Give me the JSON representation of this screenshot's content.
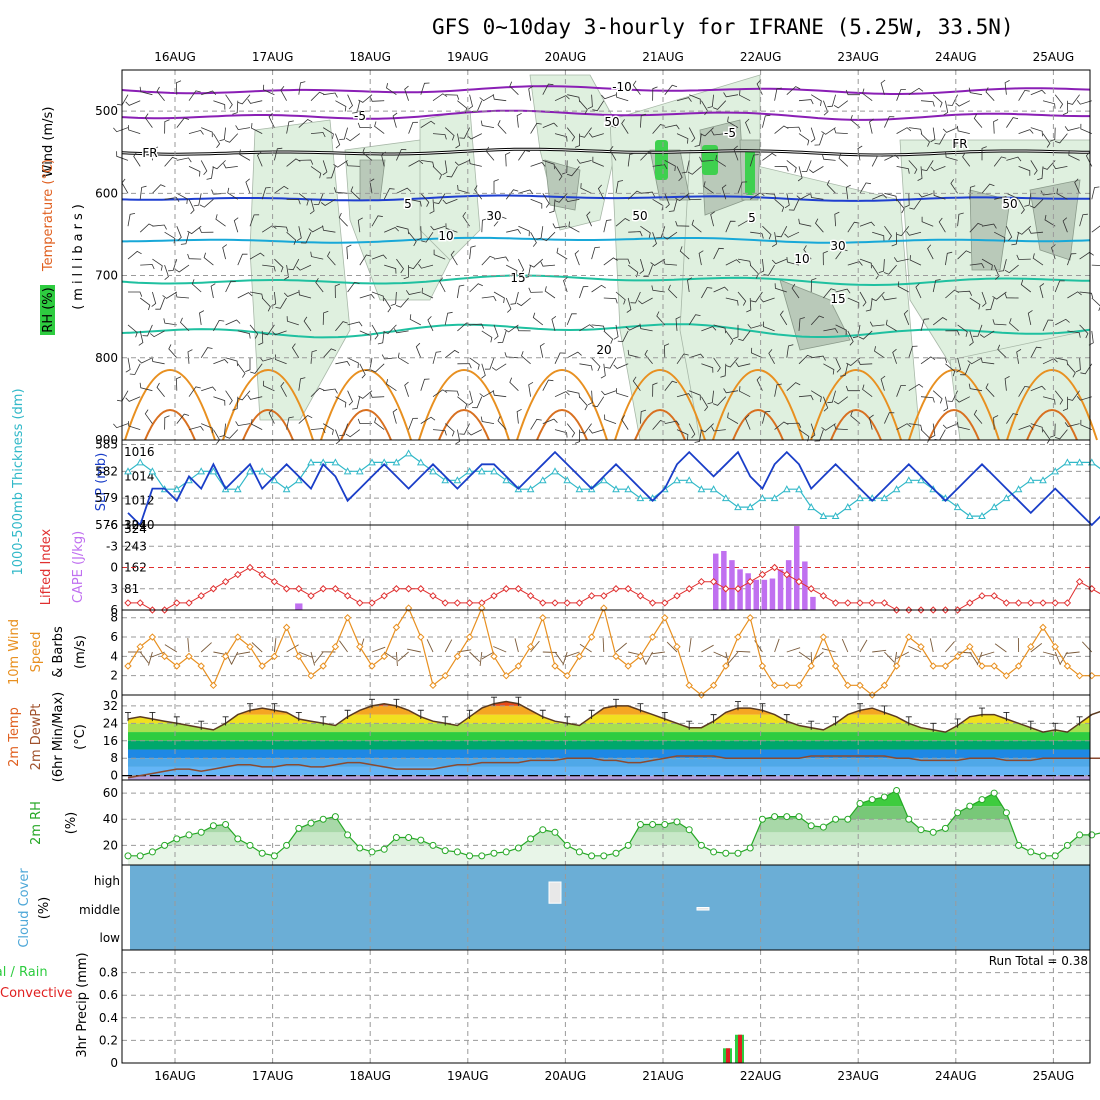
{
  "title": "GFS 0~10day 3-hourly for IFRANE (5.25W, 33.5N)",
  "dates": [
    "16AUG",
    "17AUG",
    "18AUG",
    "19AUG",
    "20AUG",
    "21AUG",
    "22AUG",
    "23AUG",
    "24AUG",
    "25AUG"
  ],
  "run_total": "Run Total = 0.38",
  "colors": {
    "rh_green": "#2ecc40",
    "temp_purple": "#8a1fb5",
    "temp_blue": "#1f3fd0",
    "temp_cyan": "#18a8d8",
    "temp_teal": "#1fc0a0",
    "temp_orange": "#e89020",
    "slp_blue": "#1a3ec8",
    "thickness_cyan": "#30b8c8",
    "lifted_red": "#e03030",
    "cape_purple": "#c070f0",
    "wind_orange": "#e89020",
    "rh2m_green": "#27a827",
    "cloud_blue": "#6baed6",
    "precip_green": "#2ecc40",
    "precip_red": "#e02020"
  },
  "panels": {
    "upper": {
      "label_wind": "Wind (m/s)",
      "label_temp": "Temperature (°C)",
      "label_rh": "RH (%)",
      "label_mb": "(millibars)",
      "yticks": [
        "500",
        "600",
        "700",
        "800",
        "900"
      ],
      "contour_labels": [
        "-10",
        "-5",
        "-5",
        "FR",
        "FR",
        "5",
        "5",
        "10",
        "10",
        "15",
        "15",
        "20",
        "30",
        "30",
        "50",
        "50",
        "50"
      ]
    },
    "slp": {
      "label_thick": "1000-500mb Thickness (dm)",
      "label_slp": "SLP (mb)",
      "left_ticks": [
        "585",
        "582",
        "579",
        "576"
      ],
      "right_ticks": [
        "1016",
        "1014",
        "1012",
        "1010"
      ]
    },
    "cape": {
      "label_li": "Lifted Index",
      "label_cape": "CAPE (J/kg)",
      "left_ticks": [
        "-6",
        "-3",
        "0",
        "3",
        "6"
      ],
      "right_ticks": [
        "324",
        "243",
        "162",
        "81"
      ]
    },
    "wind10": {
      "label": "10m Wind",
      "label2": "Speed",
      "label3": "(m/s)",
      "label4": "& Barbs",
      "ticks": [
        "8",
        "6",
        "4",
        "2",
        "0"
      ]
    },
    "temp2m": {
      "label": "2m Temp",
      "label2": "2m DewPt",
      "label3": "(6hr Min/Max)",
      "label4": "(°C)",
      "ticks": [
        "32",
        "24",
        "16",
        "8",
        "0"
      ]
    },
    "rh2m": {
      "label": "2m RH",
      "label2": "(%)",
      "ticks": [
        "60",
        "40",
        "20"
      ]
    },
    "cloud": {
      "label": "Cloud Cover",
      "label2": "(%)",
      "ticks": [
        "high",
        "middle",
        "low"
      ]
    },
    "precip": {
      "label": "Total / Rain",
      "label2": "Convective",
      "label3": "3hr Precip (mm)",
      "ticks": [
        "0.8",
        "0.6",
        "0.4",
        "0.2",
        "0"
      ]
    }
  },
  "chart_data": {
    "type": "line",
    "x_labels": [
      "16AUG",
      "17AUG",
      "18AUG",
      "19AUG",
      "20AUG",
      "21AUG",
      "22AUG",
      "23AUG",
      "24AUG",
      "25AUG"
    ],
    "series": [
      {
        "name": "SLP (mb)",
        "values": [
          1011,
          1010,
          1013,
          1013,
          1012,
          1014,
          1013,
          1015,
          1013,
          1014,
          1015,
          1013,
          1014,
          1015,
          1014,
          1013,
          1015,
          1014,
          1012,
          1013,
          1014,
          1015,
          1014,
          1013,
          1014,
          1015,
          1014,
          1013,
          1014,
          1015,
          1015,
          1014,
          1013,
          1014,
          1015,
          1016,
          1015,
          1014,
          1013,
          1014,
          1015,
          1014,
          1013,
          1012,
          1013,
          1015,
          1016,
          1015,
          1014,
          1015,
          1016,
          1014,
          1013,
          1015,
          1016,
          1015,
          1013,
          1014,
          1015,
          1014,
          1013,
          1012,
          1013,
          1014,
          1015,
          1014,
          1013,
          1012,
          1013,
          1014,
          1015,
          1014,
          1013,
          1012,
          1011,
          1012,
          1013,
          1012,
          1011,
          1010,
          1011,
          1012,
          1013
        ]
      },
      {
        "name": "1000-500mb Thickness (dm)",
        "values": [
          582,
          583,
          582,
          580,
          580,
          581,
          582,
          582,
          580,
          580,
          582,
          582,
          581,
          580,
          581,
          583,
          583,
          583,
          582,
          582,
          583,
          583,
          583,
          584,
          583,
          582,
          581,
          581,
          582,
          582,
          582,
          581,
          580,
          580,
          581,
          582,
          581,
          580,
          580,
          581,
          580,
          580,
          579,
          579,
          580,
          581,
          581,
          580,
          580,
          579,
          578,
          578,
          579,
          579,
          580,
          580,
          578,
          577,
          577,
          578,
          579,
          579,
          579,
          580,
          581,
          581,
          580,
          579,
          578,
          577,
          577,
          578,
          579,
          580,
          581,
          581,
          582,
          583,
          583,
          583,
          582,
          582,
          582
        ]
      },
      {
        "name": "Lifted Index",
        "values": [
          5,
          5,
          6,
          6,
          5,
          5,
          4,
          3,
          2,
          1,
          0,
          1,
          2,
          3,
          3,
          4,
          3,
          3,
          4,
          5,
          5,
          4,
          3,
          3,
          3,
          4,
          5,
          5,
          5,
          5,
          4,
          3,
          3,
          4,
          5,
          5,
          5,
          5,
          4,
          4,
          3,
          3,
          4,
          5,
          5,
          4,
          3,
          2,
          2,
          3,
          3,
          2,
          1,
          0,
          1,
          2,
          3,
          4,
          5,
          5,
          5,
          5,
          5,
          6,
          6,
          6,
          6,
          6,
          6,
          5,
          4,
          4,
          5,
          5,
          5,
          5,
          5,
          5,
          2,
          3,
          4,
          5,
          5
        ]
      },
      {
        "name": "CAPE (J/kg)",
        "values": [
          0,
          0,
          0,
          0,
          0,
          0,
          0,
          0,
          0,
          0,
          0,
          0,
          0,
          0,
          25,
          0,
          0,
          0,
          0,
          0,
          0,
          0,
          0,
          0,
          0,
          0,
          0,
          0,
          0,
          0,
          0,
          0,
          0,
          0,
          0,
          0,
          0,
          0,
          0,
          0,
          0,
          0,
          0,
          0,
          0,
          0,
          0,
          0,
          0,
          0,
          0,
          0,
          0,
          0,
          0,
          0,
          0,
          0,
          0,
          0,
          0,
          0,
          0,
          0,
          0,
          0,
          0,
          0,
          0,
          0,
          0,
          0,
          0,
          0,
          0,
          0,
          0,
          0,
          0,
          0,
          0,
          0,
          0
        ]
      },
      {
        "name": "10m Wind Speed (m/s)",
        "values": [
          3,
          5,
          6,
          4,
          3,
          4,
          3,
          1,
          4,
          6,
          5,
          3,
          4,
          7,
          4,
          2,
          3,
          5,
          8,
          5,
          3,
          4,
          7,
          9,
          6,
          1,
          2,
          4,
          6,
          9,
          4,
          2,
          3,
          5,
          8,
          3,
          2,
          4,
          6,
          9,
          4,
          3,
          4,
          6,
          8,
          5,
          1,
          0,
          1,
          3,
          6,
          8,
          3,
          1,
          1,
          1,
          3,
          6,
          3,
          1,
          1,
          0,
          1,
          3,
          6,
          5,
          3,
          3,
          4,
          5,
          3,
          3,
          2,
          3,
          5,
          7,
          5,
          3,
          2,
          2,
          2,
          3,
          2
        ]
      },
      {
        "name": "2m Temp (°C)",
        "values": [
          26,
          27,
          26,
          25,
          24,
          23,
          22,
          21,
          24,
          28,
          30,
          31,
          30,
          29,
          26,
          25,
          24,
          23,
          27,
          30,
          32,
          33,
          32,
          30,
          27,
          25,
          24,
          23,
          27,
          31,
          33,
          34,
          33,
          30,
          27,
          25,
          24,
          23,
          27,
          31,
          32,
          32,
          30,
          28,
          26,
          24,
          22,
          22,
          25,
          29,
          31,
          31,
          30,
          28,
          25,
          23,
          22,
          21,
          24,
          28,
          30,
          31,
          29,
          27,
          24,
          22,
          21,
          20,
          23,
          27,
          28,
          28,
          26,
          24,
          22,
          20,
          21,
          20,
          24,
          28,
          30,
          30,
          29,
          27,
          24,
          23,
          22
        ]
      },
      {
        "name": "2m DewPt (°C)",
        "values": [
          -1,
          0,
          1,
          2,
          3,
          3,
          2,
          3,
          4,
          5,
          5,
          4,
          4,
          5,
          5,
          4,
          4,
          5,
          6,
          6,
          5,
          4,
          3,
          3,
          3,
          3,
          4,
          5,
          5,
          6,
          6,
          6,
          6,
          7,
          7,
          7,
          8,
          8,
          8,
          7,
          7,
          6,
          6,
          7,
          8,
          9,
          9,
          9,
          9,
          8,
          8,
          8,
          8,
          8,
          8,
          8,
          9,
          9,
          9,
          9,
          9,
          9,
          9,
          8,
          8,
          7,
          7,
          7,
          7,
          8,
          8,
          8,
          7,
          7,
          7,
          8,
          8,
          8,
          8,
          8,
          8,
          8,
          8
        ]
      },
      {
        "name": "2m RH (%)",
        "values": [
          12,
          12,
          15,
          20,
          25,
          28,
          30,
          35,
          36,
          25,
          20,
          14,
          12,
          20,
          33,
          37,
          40,
          42,
          28,
          18,
          15,
          17,
          26,
          26,
          24,
          20,
          16,
          15,
          12,
          12,
          14,
          15,
          18,
          25,
          32,
          30,
          20,
          15,
          12,
          12,
          14,
          20,
          36,
          36,
          36,
          38,
          32,
          20,
          15,
          14,
          14,
          18,
          40,
          42,
          42,
          42,
          35,
          34,
          40,
          40,
          52,
          55,
          57,
          62,
          40,
          32,
          30,
          33,
          45,
          50,
          55,
          60,
          45,
          20,
          15,
          12,
          12,
          20,
          28,
          28,
          30,
          28,
          22,
          15,
          30,
          40,
          42,
          42
        ]
      },
      {
        "name": "3hr Precip Total (mm)",
        "values": [
          0,
          0,
          0,
          0,
          0,
          0,
          0,
          0,
          0,
          0,
          0,
          0,
          0,
          0,
          0,
          0,
          0,
          0,
          0,
          0,
          0,
          0,
          0,
          0,
          0,
          0,
          0,
          0,
          0,
          0,
          0,
          0,
          0,
          0,
          0,
          0,
          0,
          0,
          0,
          0,
          0,
          0,
          0,
          0,
          0,
          0,
          0,
          0,
          0,
          0,
          0,
          0,
          0,
          0,
          0,
          0,
          0,
          0,
          0,
          0,
          0,
          0,
          0,
          0,
          0.13,
          0.25,
          0,
          0,
          0,
          0,
          0,
          0,
          0,
          0,
          0,
          0,
          0,
          0,
          0,
          0,
          0,
          0,
          0
        ]
      }
    ],
    "cape_bars": [
      215,
      225,
      190,
      155,
      140,
      115,
      115,
      120,
      155,
      190,
      320,
      185,
      50
    ],
    "cape_bar_start": 52,
    "precip_bars": [
      {
        "index": 64,
        "value": 0.13
      },
      {
        "index": 65,
        "value": 0.25
      }
    ],
    "cloud_cover_bars": [
      {
        "index": 35,
        "top": 0.8,
        "bottom": 0.55
      },
      {
        "index": 46,
        "top": 0.5,
        "bottom": 0.47
      }
    ],
    "slp_ylim": [
      1010,
      1017
    ],
    "thickness_ylim": [
      576,
      585.5
    ],
    "lifted_ylim": [
      6,
      -6
    ],
    "cape_ylim": [
      0,
      324
    ],
    "wind_ylim": [
      0,
      8.8
    ],
    "temp_ylim": [
      -2,
      37
    ],
    "rh_ylim": [
      5,
      70
    ],
    "precip_ylim": [
      0,
      1.0
    ],
    "pressure_ylim": [
      450,
      900
    ]
  }
}
